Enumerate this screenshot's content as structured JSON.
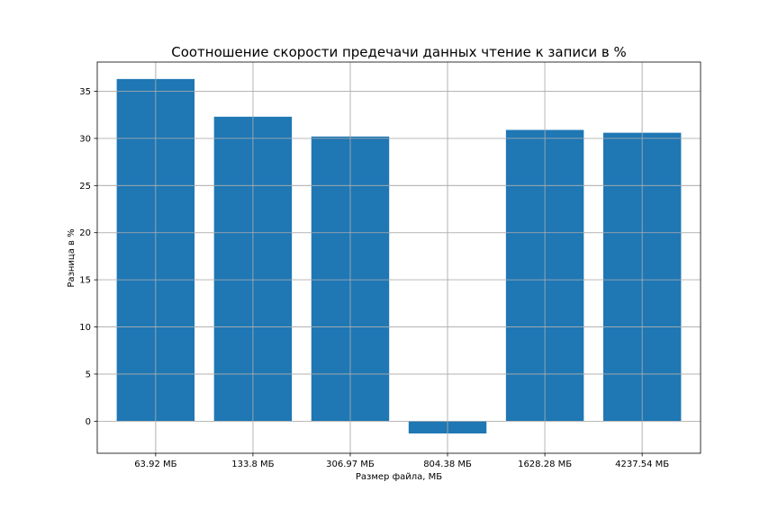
{
  "chart_data": {
    "type": "bar",
    "title": "Соотношение скорости предечачи данных чтение к записи в %",
    "xlabel": "Размер файла, МБ",
    "ylabel": "Разница в %",
    "categories": [
      "63.92 МБ",
      "133.8 МБ",
      "306.97 МБ",
      "804.38 МБ",
      "1628.28 МБ",
      "4237.54 МБ"
    ],
    "values": [
      36.3,
      32.3,
      30.2,
      -1.3,
      30.9,
      30.6
    ],
    "ylim": [
      -3.4,
      38.1
    ],
    "yticks": [
      0,
      5,
      10,
      15,
      20,
      25,
      30,
      35
    ],
    "grid": true,
    "bar_color": "#1f77b4"
  }
}
